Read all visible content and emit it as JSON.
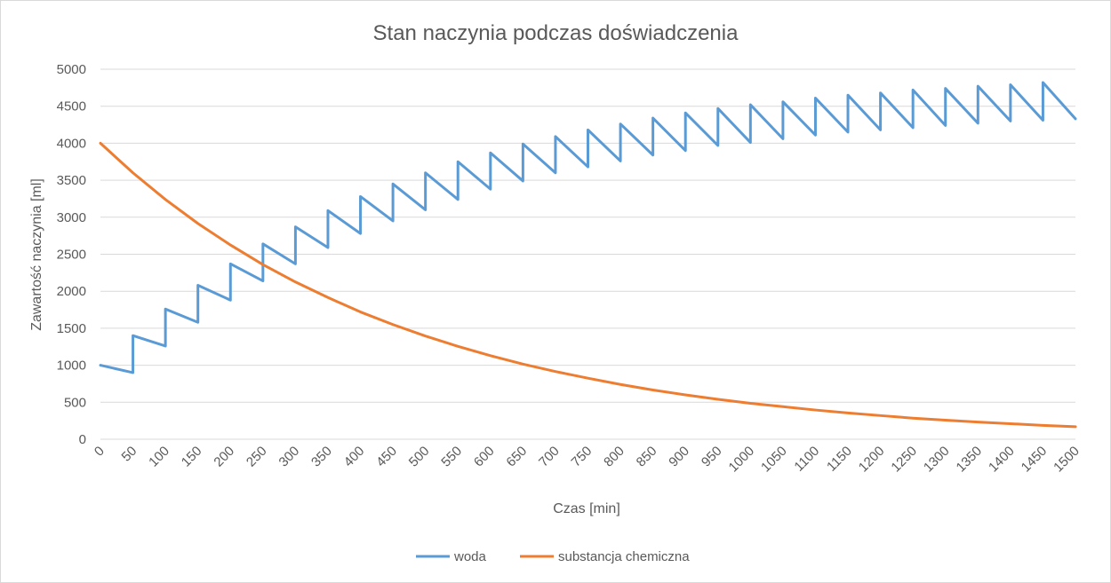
{
  "chart_data": {
    "type": "line",
    "title": "Stan naczynia podczas doświadczenia",
    "xlabel": "Czas [min]",
    "ylabel": "Zawartość naczynia [ml]",
    "xlim": [
      0,
      1500
    ],
    "ylim": [
      0,
      5000
    ],
    "x_ticks": [
      "0",
      "50",
      "100",
      "150",
      "200",
      "250",
      "300",
      "350",
      "400",
      "450",
      "500",
      "550",
      "600",
      "650",
      "700",
      "750",
      "800",
      "850",
      "900",
      "950",
      "1000",
      "1050",
      "1100",
      "1150",
      "1200",
      "1250",
      "1300",
      "1350",
      "1400",
      "1450",
      "1500"
    ],
    "y_ticks": [
      "0",
      "500",
      "1000",
      "1500",
      "2000",
      "2500",
      "3000",
      "3500",
      "4000",
      "4500",
      "5000"
    ],
    "grid": "horizontal",
    "legend_position": "bottom",
    "series": [
      {
        "name": "woda",
        "color": "#5b9bd5",
        "points": [
          [
            0,
            1000
          ],
          [
            50,
            900
          ],
          [
            50,
            1400
          ],
          [
            100,
            1260
          ],
          [
            100,
            1760
          ],
          [
            150,
            1580
          ],
          [
            150,
            2080
          ],
          [
            200,
            1880
          ],
          [
            200,
            2370
          ],
          [
            250,
            2140
          ],
          [
            250,
            2640
          ],
          [
            300,
            2370
          ],
          [
            300,
            2870
          ],
          [
            350,
            2590
          ],
          [
            350,
            3090
          ],
          [
            400,
            2780
          ],
          [
            400,
            3280
          ],
          [
            450,
            2950
          ],
          [
            450,
            3450
          ],
          [
            500,
            3100
          ],
          [
            500,
            3600
          ],
          [
            550,
            3240
          ],
          [
            550,
            3750
          ],
          [
            600,
            3380
          ],
          [
            600,
            3870
          ],
          [
            650,
            3490
          ],
          [
            650,
            3990
          ],
          [
            700,
            3600
          ],
          [
            700,
            4090
          ],
          [
            750,
            3680
          ],
          [
            750,
            4180
          ],
          [
            800,
            3760
          ],
          [
            800,
            4260
          ],
          [
            850,
            3840
          ],
          [
            850,
            4340
          ],
          [
            900,
            3900
          ],
          [
            900,
            4410
          ],
          [
            950,
            3970
          ],
          [
            950,
            4470
          ],
          [
            1000,
            4010
          ],
          [
            1000,
            4520
          ],
          [
            1050,
            4060
          ],
          [
            1050,
            4560
          ],
          [
            1100,
            4110
          ],
          [
            1100,
            4610
          ],
          [
            1150,
            4150
          ],
          [
            1150,
            4650
          ],
          [
            1200,
            4180
          ],
          [
            1200,
            4680
          ],
          [
            1250,
            4210
          ],
          [
            1250,
            4720
          ],
          [
            1300,
            4240
          ],
          [
            1300,
            4740
          ],
          [
            1350,
            4270
          ],
          [
            1350,
            4770
          ],
          [
            1400,
            4300
          ],
          [
            1400,
            4790
          ],
          [
            1450,
            4310
          ],
          [
            1450,
            4820
          ],
          [
            1500,
            4330
          ]
        ]
      },
      {
        "name": "substancja chemiczna",
        "color": "#ed7d31",
        "points": [
          [
            0,
            4000
          ],
          [
            50,
            3600
          ],
          [
            100,
            3240
          ],
          [
            150,
            2915
          ],
          [
            200,
            2625
          ],
          [
            250,
            2360
          ],
          [
            300,
            2125
          ],
          [
            350,
            1915
          ],
          [
            400,
            1720
          ],
          [
            450,
            1550
          ],
          [
            500,
            1395
          ],
          [
            550,
            1255
          ],
          [
            600,
            1130
          ],
          [
            650,
            1015
          ],
          [
            700,
            915
          ],
          [
            750,
            825
          ],
          [
            800,
            740
          ],
          [
            850,
            665
          ],
          [
            900,
            600
          ],
          [
            950,
            540
          ],
          [
            1000,
            485
          ],
          [
            1050,
            440
          ],
          [
            1100,
            395
          ],
          [
            1150,
            355
          ],
          [
            1200,
            320
          ],
          [
            1250,
            285
          ],
          [
            1300,
            258
          ],
          [
            1350,
            232
          ],
          [
            1400,
            210
          ],
          [
            1450,
            188
          ],
          [
            1500,
            170
          ]
        ]
      }
    ]
  }
}
